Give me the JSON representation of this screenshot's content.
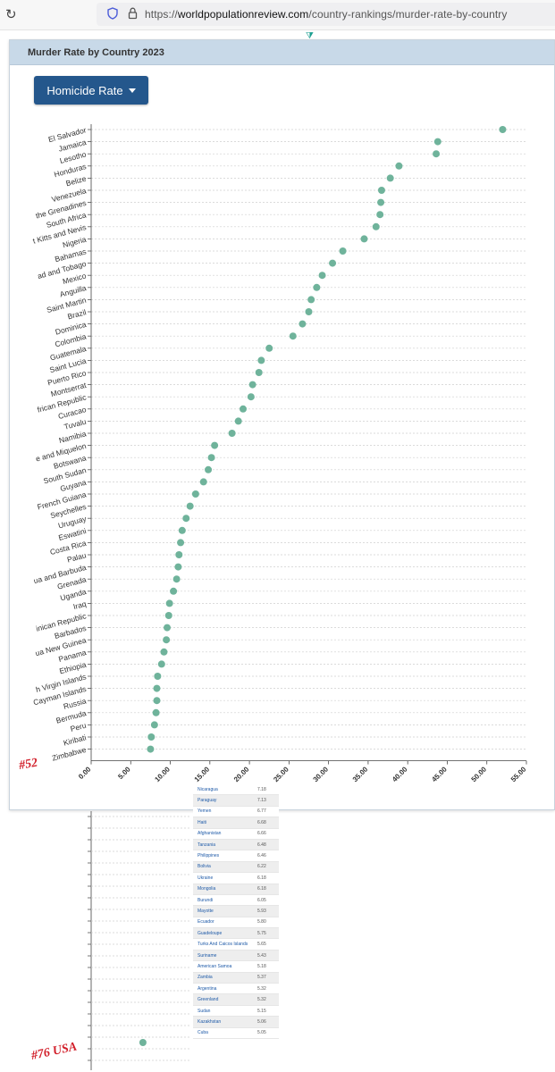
{
  "browser": {
    "url_prefix": "https://",
    "url_domain": "worldpopulationreview.com",
    "url_path": "/country-rankings/murder-rate-by-country"
  },
  "widget": {
    "title": "Murder Rate by Country 2023",
    "dropdown_label": "Homicide Rate"
  },
  "colors": {
    "dot": "#6fb39b",
    "header_bg": "#c8d9e8",
    "button_bg": "#24578c",
    "annotation": "#d2202b",
    "link": "#1e5aa8"
  },
  "annotations": {
    "rank_52": "#52",
    "rank_76": "#76 USA"
  },
  "chart_data": {
    "type": "scatter",
    "orientation": "horizontal",
    "title": "",
    "xlabel": "",
    "ylabel": "",
    "xlim": [
      0,
      55
    ],
    "x_ticks": [
      "0.00",
      "5.00",
      "10.00",
      "15.00",
      "20.00",
      "25.00",
      "30.00",
      "35.00",
      "40.00",
      "45.00",
      "50.00",
      "55.00"
    ],
    "grid": true,
    "legend": "none",
    "categories": [
      "El Salvador",
      "Jamaica",
      "Lesotho",
      "Honduras",
      "Belize",
      "Venezuela",
      "the Grenadines",
      "South Africa",
      "t Kitts and Nevis",
      "Nigeria",
      "Bahamas",
      "ad and Tobago",
      "Mexico",
      "Anguilla",
      "Saint Martin",
      "Brazil",
      "Dominica",
      "Colombia",
      "Guatemala",
      "Saint Lucia",
      "Puerto Rico",
      "Montserrat",
      "frican Republic",
      "Curacao",
      "Tuvalu",
      "Namibia",
      "e and Miquelon",
      "Botswana",
      "South Sudan",
      "Guyana",
      "French Guiana",
      "Seychelles",
      "Uruguay",
      "Eswatini",
      "Costa Rica",
      "Palau",
      "ua and Barbuda",
      "Grenada",
      "Uganda",
      "Iraq",
      "inican Republic",
      "Barbados",
      "ua New Guinea",
      "Panama",
      "Ethiopia",
      "h Virgin Islands",
      "Cayman Islands",
      "Russia",
      "Bermuda",
      "Peru",
      "Kiribati",
      "Zimbabwe"
    ],
    "values": [
      52.0,
      43.8,
      43.6,
      38.9,
      37.8,
      36.7,
      36.6,
      36.5,
      36.0,
      34.5,
      31.8,
      30.5,
      29.2,
      28.5,
      27.8,
      27.5,
      26.7,
      25.5,
      22.5,
      21.5,
      21.2,
      20.4,
      20.2,
      19.2,
      18.6,
      17.8,
      15.6,
      15.2,
      14.8,
      14.2,
      13.2,
      12.5,
      12.0,
      11.5,
      11.3,
      11.1,
      11.0,
      10.8,
      10.4,
      9.9,
      9.8,
      9.6,
      9.5,
      9.2,
      8.9,
      8.4,
      8.3,
      8.3,
      8.2,
      8.0,
      7.6,
      7.5
    ],
    "continuation_values": [
      4.96
    ],
    "continuation_label": "#76 USA"
  },
  "table": {
    "rows": [
      {
        "country": "Nicaragua",
        "rate": "7.18"
      },
      {
        "country": "Paraguay",
        "rate": "7.13"
      },
      {
        "country": "Yemen",
        "rate": "6.77"
      },
      {
        "country": "Haiti",
        "rate": "6.68"
      },
      {
        "country": "Afghanistan",
        "rate": "6.66"
      },
      {
        "country": "Tanzania",
        "rate": "6.48"
      },
      {
        "country": "Philippines",
        "rate": "6.46"
      },
      {
        "country": "Bolivia",
        "rate": "6.22"
      },
      {
        "country": "Ukraine",
        "rate": "6.18"
      },
      {
        "country": "Mongolia",
        "rate": "6.18"
      },
      {
        "country": "Burundi",
        "rate": "6.05"
      },
      {
        "country": "Mayotte",
        "rate": "5.93"
      },
      {
        "country": "Ecuador",
        "rate": "5.80"
      },
      {
        "country": "Guadeloupe",
        "rate": "5.75"
      },
      {
        "country": "Turks And Caicos Islands",
        "rate": "5.65"
      },
      {
        "country": "Suriname",
        "rate": "5.43"
      },
      {
        "country": "American Samoa",
        "rate": "5.18"
      },
      {
        "country": "Zambia",
        "rate": "5.37"
      },
      {
        "country": "Argentina",
        "rate": "5.32"
      },
      {
        "country": "Greenland",
        "rate": "5.32"
      },
      {
        "country": "Sudan",
        "rate": "5.15"
      },
      {
        "country": "Kazakhstan",
        "rate": "5.06"
      },
      {
        "country": "Cuba",
        "rate": "5.05"
      }
    ]
  }
}
